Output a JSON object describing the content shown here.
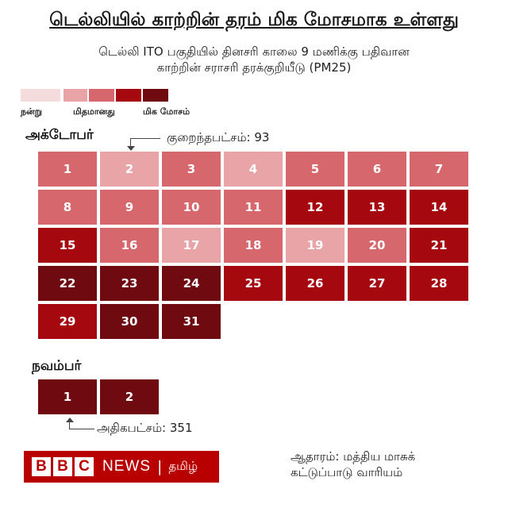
{
  "title": "டெல்லியில் காற்றின் தரம் மிக மோசமாக உள்ளது",
  "subtitle_line1": "டெல்லி ITO பகுதியில் தினசரி காலை 9 மணிக்கு பதிவான",
  "subtitle_line2": "காற்றின் சராசரி தரக்குறியீடு (PM25)",
  "legend": {
    "colors": [
      "#f5dcdc",
      "#e8a4a7",
      "#d5676d",
      "#a5080f",
      "#6e0a10"
    ],
    "label_good": "நன்று",
    "label_moderate": "மிதமானது",
    "label_very_poor": "மிக மோசம்"
  },
  "chart_data": {
    "type": "heatmap",
    "title": "டெல்லியில் காற்றின் தரம் மிக மோசமாக உள்ளது",
    "subtitle": "டெல்லி ITO பகுதியில் தினசரி காலை 9 மணிக்கு பதிவான காற்றின் சராசரி தரக்குறியீடு (PM25)",
    "months": [
      {
        "name": "அக்டோபர்",
        "days": [
          1,
          2,
          3,
          4,
          5,
          6,
          7,
          8,
          9,
          10,
          11,
          12,
          13,
          14,
          15,
          16,
          17,
          18,
          19,
          20,
          21,
          22,
          23,
          24,
          25,
          26,
          27,
          28,
          29,
          30,
          31
        ],
        "levels": [
          3,
          2,
          3,
          2,
          3,
          3,
          3,
          3,
          3,
          3,
          3,
          4,
          4,
          4,
          4,
          3,
          2,
          3,
          2,
          3,
          4,
          5,
          5,
          5,
          4,
          4,
          4,
          4,
          4,
          5,
          5
        ]
      },
      {
        "name": "நவம்பர்",
        "days": [
          1,
          2
        ],
        "levels": [
          5,
          5
        ]
      }
    ],
    "annotations": {
      "min_label": "குறைந்தபட்சம்: 93",
      "min_value": 93,
      "min_day": "அக்டோபர் 2",
      "max_label": "அதிகபட்சம்: 351",
      "max_value": 351,
      "max_day": "நவம்பர் 1"
    }
  },
  "footer": {
    "bbc_letters": [
      "B",
      "B",
      "C"
    ],
    "news": "NEWS",
    "divider": "|",
    "language": "தமிழ்",
    "source_line1": "ஆதாரம்: மத்திய மாசுக்",
    "source_line2": "கட்டுப்பாடு வாரியம்"
  }
}
